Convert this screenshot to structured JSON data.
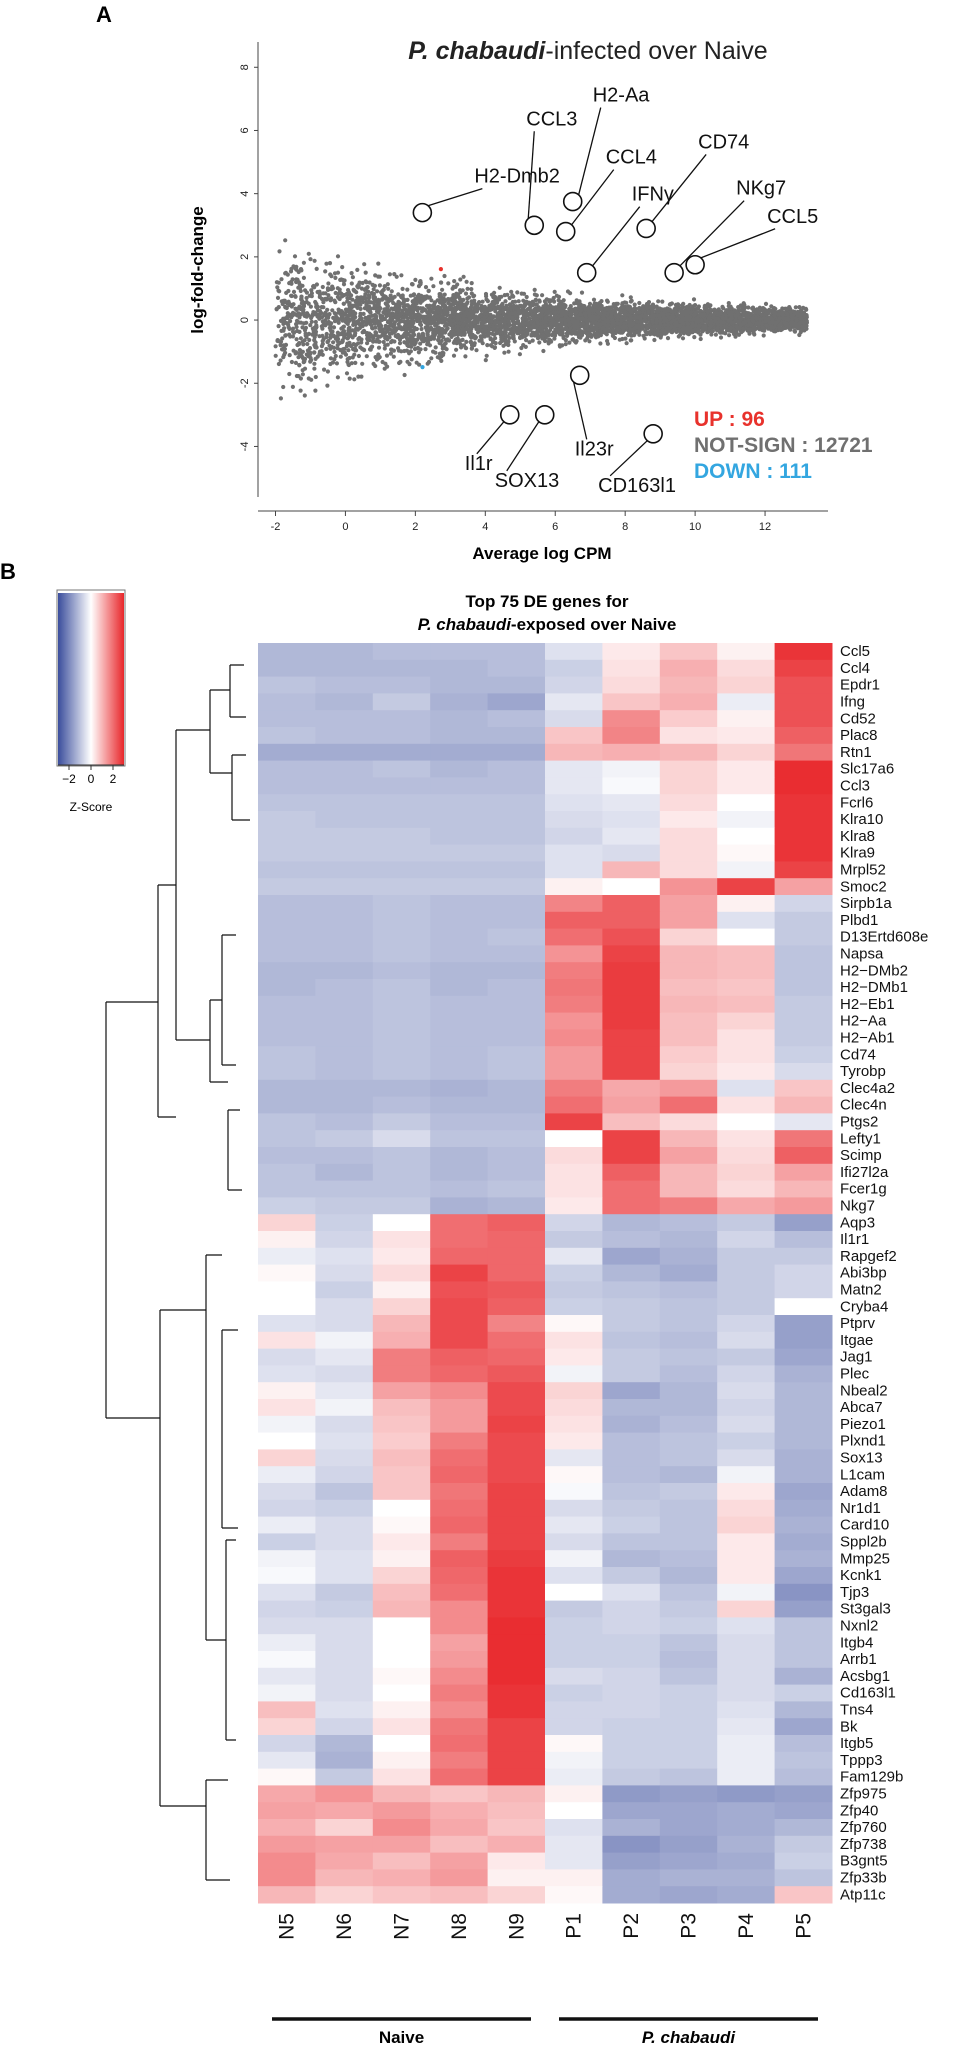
{
  "panel_a_label": "A",
  "panel_b_label": "B",
  "chart_data": [
    {
      "type": "scatter",
      "title_italic": "P. chabaudi",
      "title_rest": "-infected over Naive",
      "xlabel": "Average log CPM",
      "ylabel": "log-fold-change",
      "xlim": [
        -2.5,
        13.8
      ],
      "ylim": [
        -5.6,
        8.8
      ],
      "xticks": [
        -2,
        0,
        2,
        4,
        6,
        8,
        10,
        12
      ],
      "yticks": [
        -4,
        -2,
        0,
        2,
        4,
        6,
        8
      ],
      "colors": {
        "up": "#e8322c",
        "down": "#33a6e0",
        "not_sign": "#707070"
      },
      "legend": [
        {
          "label": "UP : 96",
          "color": "#e8322c"
        },
        {
          "label": "NOT-SIGN : 12721",
          "color": "#707070"
        },
        {
          "label": "DOWN : 111",
          "color": "#33a6e0"
        }
      ],
      "highlighted_genes": [
        {
          "label": "H2-Dmb2",
          "x": 2.2,
          "y": 3.4
        },
        {
          "label": "CCL3",
          "x": 5.4,
          "y": 3.0
        },
        {
          "label": "H2-Aa",
          "x": 6.5,
          "y": 3.75
        },
        {
          "label": "CCL4",
          "x": 6.3,
          "y": 2.8
        },
        {
          "label": "IFNγ",
          "x": 6.9,
          "y": 1.5
        },
        {
          "label": "CD74",
          "x": 8.6,
          "y": 2.9
        },
        {
          "label": "NKg7",
          "x": 9.4,
          "y": 1.5
        },
        {
          "label": "CCL5",
          "x": 10.0,
          "y": 1.75
        },
        {
          "label": "Il1r",
          "x": 4.7,
          "y": -3.0
        },
        {
          "label": "SOX13",
          "x": 5.7,
          "y": -3.0
        },
        {
          "label": "Il23r",
          "x": 6.7,
          "y": -1.75
        },
        {
          "label": "CD163l1",
          "x": 8.8,
          "y": -3.6
        }
      ]
    },
    {
      "type": "heatmap",
      "title_line1": "Top 75 DE genes for",
      "title_line2_italic": "P. chabaudi",
      "title_line2_rest": "-exposed over Naive",
      "columns": [
        "N5",
        "N6",
        "N7",
        "N8",
        "N9",
        "P1",
        "P2",
        "P3",
        "P4",
        "P5"
      ],
      "groups": [
        {
          "label": "Naive",
          "italic": false,
          "from": 0,
          "to": 4
        },
        {
          "label": "P. chabaudi",
          "italic": true,
          "from": 5,
          "to": 9
        }
      ],
      "colorbar": {
        "title": "Z-Score",
        "ticks": [
          -2,
          0,
          2
        ],
        "tick_labels": [
          "−2",
          "0",
          "2"
        ],
        "range": [
          -3,
          3
        ]
      },
      "rows": [
        "Ccl5",
        "Ccl4",
        "Epdr1",
        "Ifng",
        "Cd52",
        "Plac8",
        "Rtn1",
        "Slc17a6",
        "Ccl3",
        "Fcrl6",
        "Klra10",
        "Klra8",
        "Klra9",
        "Mrpl52",
        "Smoc2",
        "Sirpb1a",
        "Plbd1",
        "D13Ertd608e",
        "Napsa",
        "H2−DMb2",
        "H2−DMb1",
        "H2−Eb1",
        "H2−Aa",
        "H2−Ab1",
        "Cd74",
        "Tyrobp",
        "Clec4a2",
        "Clec4n",
        "Ptgs2",
        "Lefty1",
        "Scimp",
        "Ifi27l2a",
        "Fcer1g",
        "Nkg7",
        "Aqp3",
        "Il1r1",
        "Rapgef2",
        "Abi3bp",
        "Matn2",
        "Cryba4",
        "Ptprv",
        "Itgae",
        "Jag1",
        "Plec",
        "Nbeal2",
        "Abca7",
        "Piezo1",
        "Plxnd1",
        "Sox13",
        "L1cam",
        "Adam8",
        "Nr1d1",
        "Card10",
        "Sppl2b",
        "Mmp25",
        "Kcnk1",
        "Tjp3",
        "St3gal3",
        "Nxnl2",
        "Itgb4",
        "Arrb1",
        "Acsbg1",
        "Cd163l1",
        "Tns4",
        "Bk",
        "Itgb5",
        "Tppp3",
        "Fam129b",
        "Zfp975",
        "Zfp40",
        "Zfp760",
        "Zfp738",
        "B3gnt5",
        "Zfp33b",
        "Atp11c"
      ],
      "values": [
        [
          -1.2,
          -1.2,
          -1.1,
          -1.1,
          -1.1,
          -0.5,
          0.3,
          0.8,
          0.2,
          2.8
        ],
        [
          -1.2,
          -1.2,
          -1.2,
          -1.2,
          -1.1,
          -0.8,
          0.4,
          1.1,
          0.5,
          2.6
        ],
        [
          -1.0,
          -1.1,
          -1.1,
          -1.2,
          -1.2,
          -0.7,
          0.5,
          1.0,
          0.6,
          2.4
        ],
        [
          -1.1,
          -1.2,
          -0.9,
          -1.3,
          -1.5,
          -0.4,
          0.8,
          1.1,
          -0.3,
          2.4
        ],
        [
          -1.1,
          -1.1,
          -1.1,
          -1.2,
          -1.1,
          -0.6,
          1.6,
          0.7,
          0.2,
          2.4
        ],
        [
          -1.0,
          -1.1,
          -1.1,
          -1.2,
          -1.2,
          0.8,
          1.7,
          0.4,
          0.3,
          2.2
        ],
        [
          -1.4,
          -1.4,
          -1.4,
          -1.4,
          -1.4,
          1.0,
          1.1,
          1.0,
          0.6,
          1.9
        ],
        [
          -1.1,
          -1.1,
          -1.0,
          -1.2,
          -1.1,
          -0.4,
          -0.2,
          0.6,
          0.3,
          2.9
        ],
        [
          -1.1,
          -1.1,
          -1.1,
          -1.1,
          -1.1,
          -0.4,
          -0.1,
          0.6,
          0.3,
          2.9
        ],
        [
          -1.0,
          -1.0,
          -1.0,
          -1.0,
          -1.0,
          -0.5,
          -0.4,
          0.5,
          0.0,
          2.8
        ],
        [
          -0.9,
          -1.0,
          -1.0,
          -1.0,
          -1.0,
          -0.6,
          -0.5,
          0.3,
          -0.2,
          2.8
        ],
        [
          -0.9,
          -0.9,
          -0.9,
          -1.0,
          -1.0,
          -0.7,
          -0.4,
          0.5,
          0.0,
          2.8
        ],
        [
          -0.9,
          -0.9,
          -0.9,
          -0.9,
          -0.9,
          -0.5,
          -0.6,
          0.5,
          0.1,
          2.8
        ],
        [
          -1.0,
          -1.0,
          -1.0,
          -1.0,
          -1.0,
          -0.5,
          1.0,
          0.5,
          -0.2,
          2.6
        ],
        [
          -0.9,
          -0.9,
          -0.9,
          -0.9,
          -0.9,
          0.2,
          0.0,
          1.5,
          2.6,
          1.3
        ],
        [
          -1.1,
          -1.1,
          -1.0,
          -1.1,
          -1.1,
          1.7,
          2.2,
          1.3,
          0.2,
          -0.7
        ],
        [
          -1.1,
          -1.1,
          -1.0,
          -1.1,
          -1.1,
          2.2,
          2.2,
          1.3,
          -0.5,
          -0.9
        ],
        [
          -1.1,
          -1.1,
          -1.0,
          -1.1,
          -1.0,
          2.0,
          2.4,
          0.6,
          0.0,
          -0.9
        ],
        [
          -1.1,
          -1.1,
          -1.0,
          -1.1,
          -1.1,
          1.5,
          2.6,
          1.0,
          0.9,
          -1.0
        ],
        [
          -1.2,
          -1.2,
          -1.1,
          -1.2,
          -1.2,
          1.8,
          2.7,
          1.0,
          0.9,
          -1.0
        ],
        [
          -1.2,
          -1.1,
          -1.0,
          -1.2,
          -1.1,
          1.9,
          2.7,
          0.9,
          0.8,
          -1.0
        ],
        [
          -1.1,
          -1.1,
          -1.0,
          -1.1,
          -1.1,
          1.8,
          2.7,
          1.0,
          0.9,
          -0.9
        ],
        [
          -1.1,
          -1.1,
          -1.0,
          -1.1,
          -1.1,
          1.5,
          2.7,
          0.9,
          0.6,
          -0.9
        ],
        [
          -1.1,
          -1.1,
          -1.0,
          -1.1,
          -1.1,
          1.6,
          2.6,
          0.9,
          0.4,
          -0.9
        ],
        [
          -1.0,
          -1.1,
          -1.0,
          -1.1,
          -1.0,
          1.4,
          2.6,
          0.7,
          0.4,
          -0.8
        ],
        [
          -1.0,
          -1.1,
          -1.0,
          -1.1,
          -1.0,
          1.4,
          2.6,
          0.6,
          0.3,
          -0.6
        ],
        [
          -1.2,
          -1.2,
          -1.2,
          -1.3,
          -1.2,
          1.8,
          1.2,
          1.4,
          -0.5,
          0.8
        ],
        [
          -1.2,
          -1.2,
          -1.1,
          -1.2,
          -1.2,
          2.0,
          1.3,
          2.0,
          0.4,
          1.0
        ],
        [
          -1.0,
          -1.1,
          -0.9,
          -1.1,
          -1.1,
          2.6,
          0.9,
          0.5,
          0.0,
          -0.4
        ],
        [
          -1.0,
          -0.9,
          -0.6,
          -1.0,
          -1.0,
          0.0,
          2.6,
          1.0,
          0.4,
          1.9
        ],
        [
          -1.1,
          -1.1,
          -1.0,
          -1.2,
          -1.1,
          0.5,
          2.6,
          1.3,
          0.5,
          2.2
        ],
        [
          -1.0,
          -1.2,
          -1.0,
          -1.2,
          -1.1,
          0.4,
          2.2,
          1.0,
          0.6,
          1.3
        ],
        [
          -1.0,
          -1.0,
          -1.0,
          -1.1,
          -1.0,
          0.4,
          2.0,
          1.0,
          0.5,
          1.0
        ],
        [
          -0.8,
          -0.9,
          -0.9,
          -1.3,
          -1.2,
          0.3,
          2.0,
          1.8,
          1.2,
          1.4
        ],
        [
          0.6,
          -0.8,
          0.0,
          2.0,
          2.2,
          -0.7,
          -1.2,
          -1.1,
          -0.9,
          -1.6
        ],
        [
          0.2,
          -0.7,
          0.4,
          2.0,
          2.1,
          -0.9,
          -1.1,
          -1.2,
          -0.7,
          -1.1
        ],
        [
          -0.3,
          -0.5,
          0.3,
          2.1,
          2.1,
          -0.4,
          -1.5,
          -1.3,
          -0.9,
          -0.9
        ],
        [
          0.1,
          -0.6,
          0.5,
          2.6,
          2.1,
          -0.8,
          -1.2,
          -1.4,
          -0.9,
          -0.7
        ],
        [
          0.0,
          -0.8,
          0.2,
          2.4,
          2.3,
          -0.9,
          -1.0,
          -1.1,
          -0.9,
          -0.7
        ],
        [
          0.0,
          -0.6,
          0.6,
          2.5,
          2.2,
          -0.8,
          -0.9,
          -1.0,
          -0.9,
          0.0
        ],
        [
          -0.5,
          -0.6,
          1.0,
          2.5,
          1.7,
          0.1,
          -0.9,
          -1.0,
          -0.7,
          -1.6
        ],
        [
          0.4,
          -0.2,
          1.1,
          2.5,
          2.0,
          0.4,
          -1.0,
          -1.1,
          -0.6,
          -1.6
        ],
        [
          -0.6,
          -0.4,
          1.8,
          2.2,
          2.1,
          0.3,
          -0.9,
          -1.0,
          -0.9,
          -1.5
        ],
        [
          -0.5,
          -0.6,
          1.8,
          2.1,
          2.3,
          -0.2,
          -0.9,
          -1.1,
          -0.7,
          -1.3
        ],
        [
          0.2,
          -0.4,
          1.3,
          1.6,
          2.5,
          0.6,
          -1.5,
          -1.2,
          -0.6,
          -1.2
        ],
        [
          0.4,
          -0.2,
          0.9,
          1.4,
          2.5,
          0.5,
          -1.2,
          -1.2,
          -0.7,
          -1.2
        ],
        [
          -0.2,
          -0.6,
          0.8,
          1.4,
          2.6,
          0.4,
          -1.3,
          -1.1,
          -0.6,
          -1.2
        ],
        [
          0.0,
          -0.5,
          0.7,
          1.8,
          2.5,
          0.3,
          -1.1,
          -1.0,
          -0.8,
          -1.2
        ],
        [
          0.6,
          -0.6,
          0.9,
          2.0,
          2.5,
          -0.4,
          -1.1,
          -1.0,
          -0.6,
          -1.3
        ],
        [
          -0.3,
          -0.7,
          0.8,
          2.1,
          2.5,
          0.1,
          -1.1,
          -1.2,
          -0.2,
          -1.3
        ],
        [
          -0.6,
          -1.0,
          0.8,
          1.9,
          2.6,
          -0.1,
          -1.0,
          -0.9,
          0.3,
          -1.5
        ],
        [
          -0.7,
          -0.8,
          0.0,
          2.0,
          2.6,
          -0.6,
          -0.9,
          -1.0,
          0.5,
          -1.4
        ],
        [
          -0.3,
          -0.6,
          0.1,
          2.1,
          2.6,
          -0.4,
          -0.8,
          -1.0,
          0.6,
          -1.3
        ],
        [
          -0.8,
          -0.6,
          0.3,
          1.8,
          2.6,
          -0.6,
          -1.0,
          -1.0,
          0.3,
          -1.4
        ],
        [
          -0.2,
          -0.5,
          0.2,
          2.2,
          2.7,
          -0.2,
          -1.2,
          -1.1,
          0.3,
          -1.3
        ],
        [
          -0.1,
          -0.5,
          0.6,
          2.1,
          2.8,
          -0.5,
          -0.9,
          -1.2,
          0.3,
          -1.5
        ],
        [
          -0.5,
          -0.9,
          0.9,
          2.0,
          2.8,
          0.0,
          -0.5,
          -1.0,
          -0.2,
          -1.8
        ],
        [
          -0.7,
          -0.8,
          1.0,
          1.6,
          2.8,
          -0.9,
          -0.7,
          -0.9,
          0.6,
          -1.6
        ],
        [
          -0.6,
          -0.6,
          0.0,
          1.6,
          2.9,
          -0.8,
          -0.7,
          -0.8,
          -0.5,
          -1.0
        ],
        [
          -0.3,
          -0.6,
          0.0,
          1.3,
          2.9,
          -0.8,
          -0.8,
          -1.0,
          -0.6,
          -1.0
        ],
        [
          -0.1,
          -0.6,
          0.0,
          1.4,
          2.9,
          -0.8,
          -0.8,
          -1.1,
          -0.6,
          -1.0
        ],
        [
          -0.4,
          -0.6,
          0.1,
          1.6,
          2.9,
          -0.6,
          -0.7,
          -1.0,
          -0.6,
          -1.3
        ],
        [
          -0.2,
          -0.6,
          0.0,
          1.8,
          2.8,
          -0.8,
          -0.7,
          -0.8,
          -0.6,
          -0.8
        ],
        [
          0.9,
          -0.5,
          0.2,
          1.6,
          2.8,
          -0.7,
          -0.7,
          -0.8,
          -0.5,
          -1.2
        ],
        [
          0.6,
          -0.7,
          0.4,
          1.9,
          2.6,
          -0.7,
          -0.8,
          -0.8,
          -0.4,
          -1.5
        ],
        [
          -0.7,
          -1.2,
          0.0,
          2.0,
          2.6,
          0.1,
          -0.8,
          -0.8,
          -0.3,
          -1.1
        ],
        [
          -0.4,
          -1.3,
          0.2,
          1.8,
          2.6,
          -0.2,
          -0.8,
          -0.8,
          -0.3,
          -1.0
        ],
        [
          0.1,
          -0.9,
          0.4,
          2.0,
          2.6,
          -0.3,
          -0.9,
          -1.0,
          -0.3,
          -1.1
        ],
        [
          1.2,
          1.5,
          1.0,
          0.8,
          1.0,
          0.2,
          -1.7,
          -1.6,
          -1.7,
          -1.6
        ],
        [
          1.3,
          1.2,
          1.4,
          1.1,
          0.9,
          0.0,
          -1.5,
          -1.5,
          -1.4,
          -1.5
        ],
        [
          1.1,
          0.6,
          1.6,
          1.2,
          0.8,
          -0.5,
          -1.3,
          -1.5,
          -1.4,
          -1.2
        ],
        [
          1.4,
          1.3,
          1.3,
          0.9,
          1.1,
          -0.4,
          -1.8,
          -1.6,
          -1.3,
          -0.9
        ],
        [
          1.6,
          1.2,
          0.9,
          1.3,
          0.3,
          -0.4,
          -1.6,
          -1.5,
          -1.4,
          -0.8
        ],
        [
          1.6,
          1.0,
          1.1,
          1.4,
          0.2,
          0.2,
          -1.4,
          -1.3,
          -1.3,
          -1.0
        ],
        [
          1.0,
          0.6,
          0.8,
          0.9,
          0.6,
          0.1,
          -1.4,
          -1.5,
          -1.4,
          0.8
        ]
      ]
    }
  ]
}
